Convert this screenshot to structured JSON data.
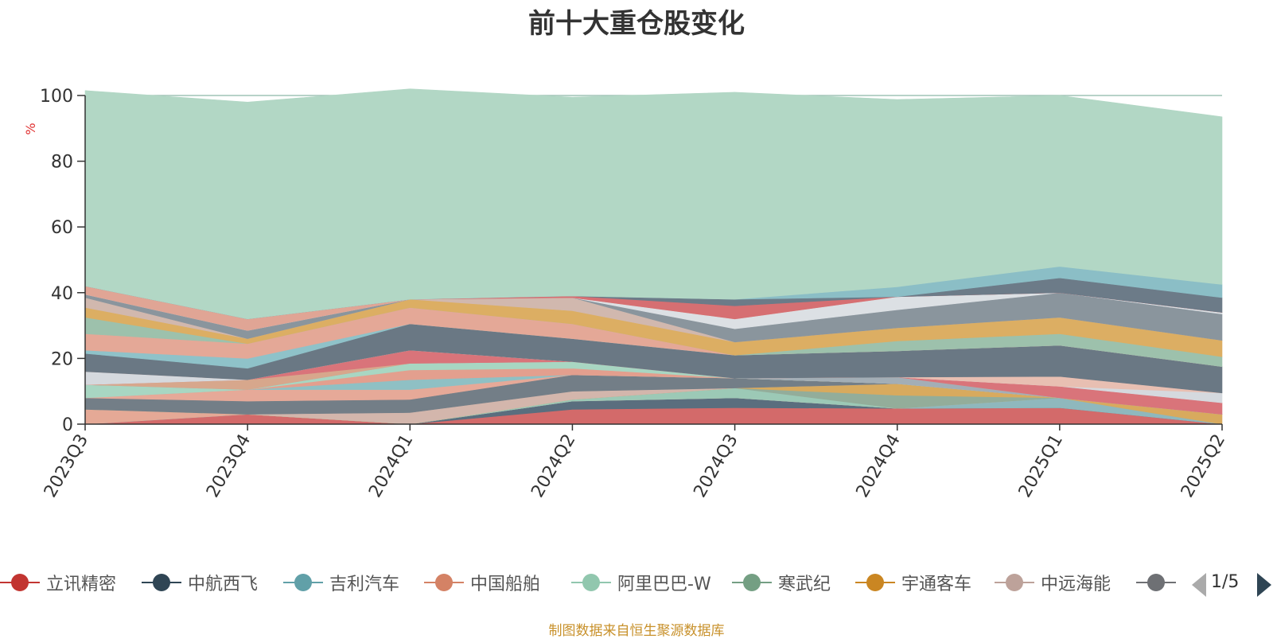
{
  "chart_data": {
    "type": "area",
    "title": "前十大重仓股变化",
    "ylabel": "%",
    "ylim": [
      0,
      100
    ],
    "yticks": [
      0,
      20,
      40,
      60,
      80,
      100
    ],
    "categories": [
      "2023Q3",
      "2023Q4",
      "2024Q1",
      "2024Q2",
      "2024Q3",
      "2024Q4",
      "2025Q1",
      "2025Q2"
    ],
    "grid": true,
    "stacked": true,
    "series": [
      {
        "name": "立讯精密",
        "color": "#d36a6a",
        "values": [
          0.0,
          3.0,
          0.0,
          4.5,
          5.0,
          4.8,
          5.0,
          0.0
        ]
      },
      {
        "name": "中航西飞",
        "color": "#5a6e7e",
        "values": [
          0.0,
          0.0,
          0.0,
          2.5,
          3.0,
          0.0,
          0.0,
          0.0
        ]
      },
      {
        "name": "吉利汽车",
        "color": "#8fb8bd",
        "values": [
          0.0,
          0.0,
          0.0,
          0.0,
          0.0,
          0.0,
          3.0,
          0.0
        ]
      },
      {
        "name": "中国船舶",
        "color": "#e5a996",
        "values": [
          4.5,
          0.0,
          0.0,
          0.0,
          0.0,
          0.0,
          0.0,
          0.0
        ]
      },
      {
        "name": "阿里巴巴-W",
        "color": "#9cc9b6",
        "values": [
          0.0,
          0.0,
          0.0,
          0.5,
          3.0,
          0.0,
          0.0,
          0.0
        ]
      },
      {
        "name": "寒武纪",
        "color": "#93ad9a",
        "values": [
          0.0,
          0.0,
          0.0,
          0.0,
          0.0,
          4.0,
          0.0,
          0.0
        ]
      },
      {
        "name": "宇通客车",
        "color": "#d8aa5e",
        "values": [
          0.0,
          0.0,
          0.0,
          0.0,
          0.0,
          3.5,
          0.0,
          3.0
        ]
      },
      {
        "name": "中远海能",
        "color": "#d3b6ac",
        "values": [
          0.0,
          0.0,
          3.5,
          2.5,
          0.0,
          0.0,
          0.0,
          0.0
        ]
      },
      {
        "name": "",
        "color": "#737e87",
        "values": [
          3.5,
          4.0,
          4.0,
          5.0,
          3.0,
          0.0,
          0.0,
          0.0
        ]
      },
      {
        "name": "",
        "color": "#e6a998",
        "values": [
          0.0,
          3.5,
          3.0,
          0.0,
          0.0,
          0.0,
          0.0,
          0.0
        ]
      },
      {
        "name": "",
        "color": "#8fc0c4",
        "values": [
          0.0,
          0.0,
          3.0,
          0.0,
          0.0,
          0.0,
          0.0,
          0.0
        ]
      },
      {
        "name": "",
        "color": "#e39f8e",
        "values": [
          0.0,
          0.0,
          3.0,
          2.0,
          0.0,
          0.0,
          0.0,
          0.0
        ]
      },
      {
        "name": "",
        "color": "#a8d6c2",
        "values": [
          4.0,
          0.0,
          2.0,
          2.0,
          0.0,
          0.0,
          0.0,
          0.0
        ]
      },
      {
        "name": "",
        "color": "#a3aeb6",
        "values": [
          0.0,
          0.0,
          0.0,
          0.0,
          0.0,
          2.0,
          0.0,
          0.0
        ]
      },
      {
        "name": "",
        "color": "#d7a78c",
        "values": [
          0.0,
          3.0,
          0.0,
          0.0,
          0.0,
          0.0,
          0.0,
          0.0
        ]
      },
      {
        "name": "",
        "color": "#d9747a",
        "values": [
          0.0,
          0.0,
          4.0,
          0.0,
          0.0,
          0.0,
          3.5,
          3.5
        ]
      },
      {
        "name": "",
        "color": "#d5d9de",
        "values": [
          4.0,
          0.0,
          0.0,
          0.0,
          0.0,
          0.0,
          0.0,
          3.0
        ]
      },
      {
        "name": "",
        "color": "#e8bfb2",
        "values": [
          0.0,
          0.0,
          0.0,
          0.0,
          0.0,
          0.0,
          3.0,
          0.0
        ]
      },
      {
        "name": "",
        "color": "#6a7884",
        "values": [
          5.5,
          3.5,
          8.0,
          7.0,
          7.0,
          8.0,
          9.5,
          8.0
        ]
      },
      {
        "name": "",
        "color": "#8fc2c9",
        "values": [
          1.0,
          3.0,
          0.0,
          0.0,
          0.0,
          0.0,
          0.0,
          0.0
        ]
      },
      {
        "name": "",
        "color": "#e4a897",
        "values": [
          5.0,
          4.5,
          5.0,
          4.5,
          0.0,
          0.0,
          0.0,
          0.0
        ]
      },
      {
        "name": "",
        "color": "#9dc1ac",
        "values": [
          5.0,
          0.0,
          0.0,
          0.0,
          0.0,
          3.0,
          3.5,
          3.0
        ]
      },
      {
        "name": "",
        "color": "#dcae63",
        "values": [
          3.0,
          1.5,
          2.5,
          4.0,
          4.0,
          4.0,
          5.0,
          5.0
        ]
      },
      {
        "name": "",
        "color": "#d1b8ae",
        "values": [
          3.0,
          0.0,
          0.0,
          4.0,
          0.0,
          0.0,
          0.0,
          0.0
        ]
      },
      {
        "name": "",
        "color": "#8a959d",
        "values": [
          1.0,
          2.5,
          0.0,
          0.0,
          4.0,
          5.5,
          7.5,
          8.0
        ]
      },
      {
        "name": "",
        "color": "#dce0e4",
        "values": [
          0.0,
          0.0,
          0.0,
          0.0,
          3.0,
          4.0,
          0.0,
          0.5
        ]
      },
      {
        "name": "",
        "color": "#e0a595",
        "values": [
          2.5,
          3.5,
          0.0,
          0.0,
          0.0,
          0.0,
          0.0,
          0.0
        ]
      },
      {
        "name": "",
        "color": "#d66f72",
        "values": [
          0.0,
          0.0,
          0.0,
          0.5,
          4.0,
          0.0,
          0.0,
          0.0
        ]
      },
      {
        "name": "",
        "color": "#6c7b88",
        "values": [
          0.0,
          0.0,
          0.0,
          0.0,
          2.0,
          0.0,
          4.5,
          4.5
        ]
      },
      {
        "name": "",
        "color": "#8bbec6",
        "values": [
          0.0,
          0.0,
          0.0,
          0.0,
          0.0,
          3.0,
          3.5,
          4.0
        ]
      },
      {
        "name": "",
        "color": "#b2d7c5",
        "values": [
          59.5,
          66.0,
          64.0,
          60.5,
          63.0,
          57.0,
          52.0,
          51.0
        ]
      }
    ]
  },
  "legend": {
    "items": [
      {
        "label": "立讯精密",
        "color": "#c23531"
      },
      {
        "label": "中航西飞",
        "color": "#2f4554"
      },
      {
        "label": "吉利汽车",
        "color": "#61a0a8"
      },
      {
        "label": "中国船舶",
        "color": "#d48265"
      },
      {
        "label": "阿里巴巴-W",
        "color": "#91c7ae"
      },
      {
        "label": "寒武纪",
        "color": "#749f83"
      },
      {
        "label": "宇通客车",
        "color": "#ca8622"
      },
      {
        "label": "中远海能",
        "color": "#bda29a"
      },
      {
        "label": "",
        "color": "#6e7074"
      }
    ],
    "page": "1/5"
  },
  "source_note": "制图数据来自恒生聚源数据库"
}
